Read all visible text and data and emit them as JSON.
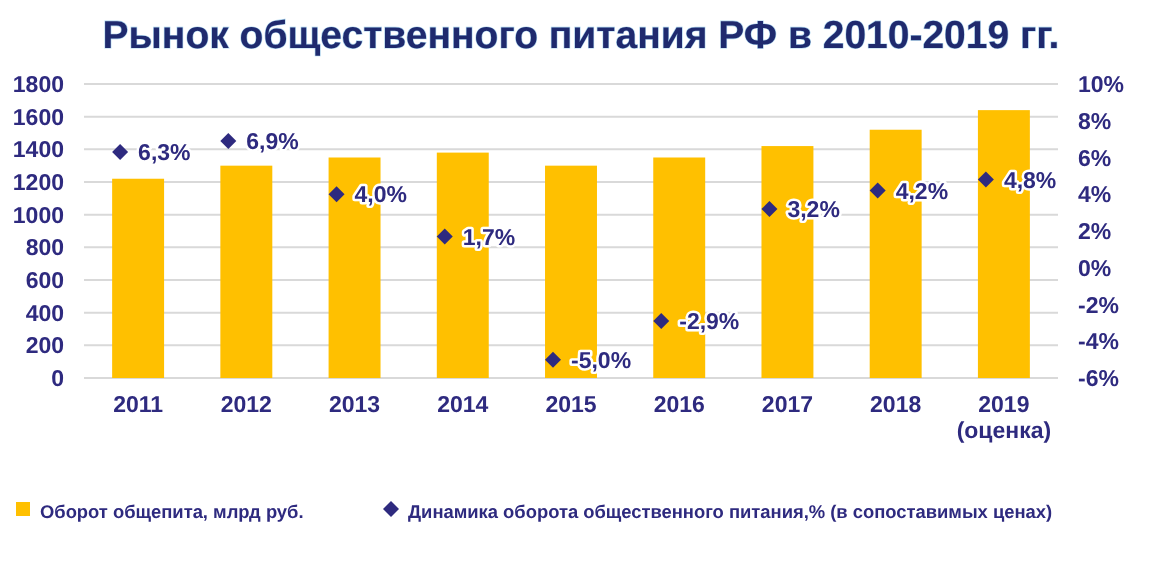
{
  "chart_data": {
    "type": "bar",
    "title": "Рынок общественного питания РФ в 2010-2019 гг.",
    "categories": [
      "2011",
      "2012",
      "2013",
      "2014",
      "2015",
      "2016",
      "2017",
      "2018",
      "2019 (оценка)"
    ],
    "series": [
      {
        "name": "Оборот общепита, млрд руб.",
        "color": "#ffc000",
        "values": [
          1220,
          1300,
          1350,
          1380,
          1300,
          1350,
          1420,
          1520,
          1640
        ]
      },
      {
        "name": "Динамика оборота общественного питания,% (в сопоставимых ценах)",
        "type": "scatter",
        "axis": "y2",
        "marker": "diamond",
        "color": "#2e2a7f",
        "values": [
          6.3,
          6.9,
          4.0,
          1.7,
          -5.0,
          -2.9,
          3.2,
          4.2,
          4.8
        ],
        "value_labels": [
          "6,3%",
          "6,9%",
          "4,0%",
          "1,7%",
          "-5,0%",
          "-2,9%",
          "3,2%",
          "4,2%",
          "4,8%"
        ]
      }
    ],
    "ylim": [
      0,
      1800
    ],
    "yticks": [
      0,
      200,
      400,
      600,
      800,
      1000,
      1200,
      1400,
      1600,
      1800
    ],
    "y2lim": [
      -6,
      10
    ],
    "y2ticks": [
      {
        "value": -6,
        "label": "-6%"
      },
      {
        "value": -4,
        "label": "-4%"
      },
      {
        "value": -2,
        "label": "-2%"
      },
      {
        "value": 0,
        "label": "0%"
      },
      {
        "value": 2,
        "label": "2%"
      },
      {
        "value": 4,
        "label": "4%"
      },
      {
        "value": 6,
        "label": "6%"
      },
      {
        "value": 8,
        "label": "8%"
      },
      {
        "value": 10,
        "label": "10%"
      }
    ],
    "grid": "y",
    "legend": "bottom"
  }
}
